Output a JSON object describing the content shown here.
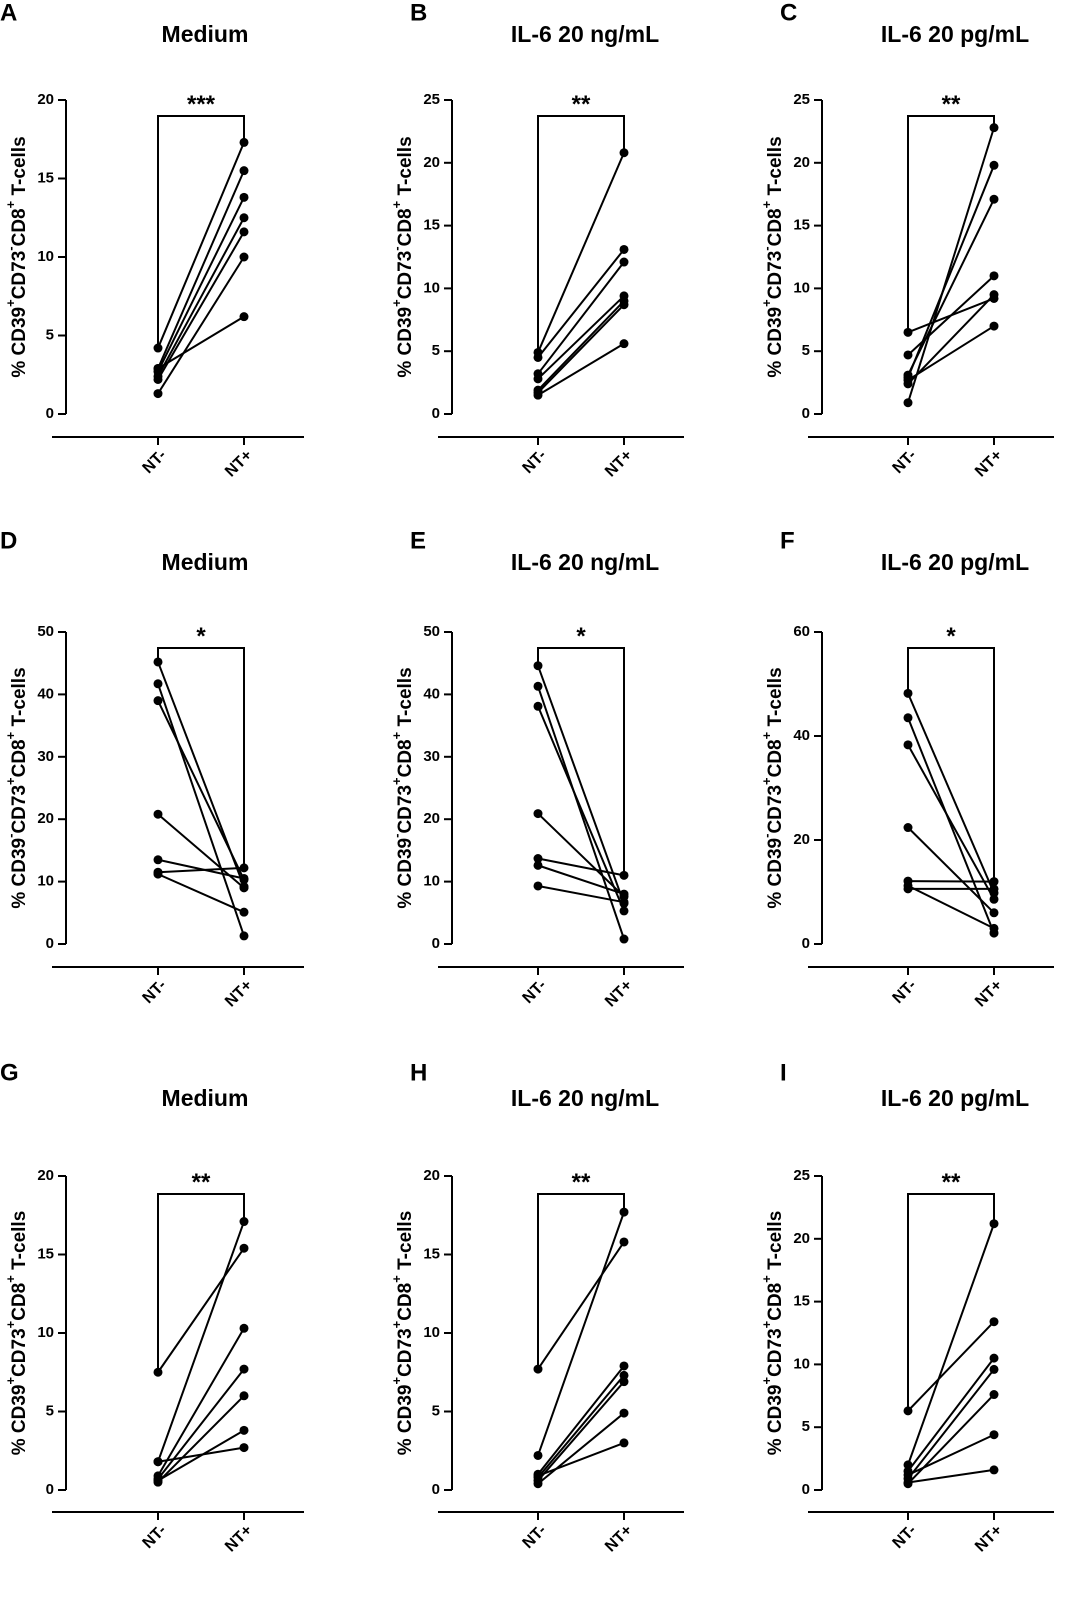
{
  "chart_data": [
    {
      "type": "line",
      "panel_label": "A",
      "title": "Medium",
      "ylabel": [
        [
          "% CD39",
          "n"
        ],
        [
          "+",
          "s"
        ],
        [
          "CD73",
          "n"
        ],
        [
          "-",
          "s"
        ],
        [
          "CD8",
          "n"
        ],
        [
          "+",
          "s"
        ],
        [
          " T-cells",
          "n"
        ]
      ],
      "categories": [
        "NT-",
        "NT+"
      ],
      "ylim": [
        0,
        20
      ],
      "yticks": [
        0,
        5,
        10,
        15,
        20
      ],
      "significance": "***",
      "series": [
        [
          4.2,
          17.3
        ],
        [
          2.9,
          15.5
        ],
        [
          2.7,
          13.8
        ],
        [
          2.4,
          12.5
        ],
        [
          2.2,
          11.6
        ],
        [
          1.3,
          10.0
        ],
        [
          2.9,
          6.2
        ]
      ]
    },
    {
      "type": "line",
      "panel_label": "B",
      "title": "IL-6 20 ng/mL",
      "ylabel": [
        [
          "% CD39",
          "n"
        ],
        [
          "+",
          "s"
        ],
        [
          "CD73",
          "n"
        ],
        [
          "-",
          "s"
        ],
        [
          "CD8",
          "n"
        ],
        [
          "+",
          "s"
        ],
        [
          " T-cells",
          "n"
        ]
      ],
      "categories": [
        "NT-",
        "NT+"
      ],
      "ylim": [
        0,
        25
      ],
      "yticks": [
        0,
        5,
        10,
        15,
        20,
        25
      ],
      "significance": "**",
      "series": [
        [
          4.9,
          20.8
        ],
        [
          4.5,
          13.1
        ],
        [
          3.2,
          12.1
        ],
        [
          2.8,
          9.4
        ],
        [
          1.9,
          9.0
        ],
        [
          1.7,
          8.7
        ],
        [
          1.5,
          5.6
        ]
      ]
    },
    {
      "type": "line",
      "panel_label": "C",
      "title": "IL-6 20 pg/mL",
      "ylabel": [
        [
          "% CD39",
          "n"
        ],
        [
          "+",
          "s"
        ],
        [
          "CD73",
          "n"
        ],
        [
          "-",
          "s"
        ],
        [
          "CD8",
          "n"
        ],
        [
          "+",
          "s"
        ],
        [
          " T-cells",
          "n"
        ]
      ],
      "categories": [
        "NT-",
        "NT+"
      ],
      "ylim": [
        0,
        25
      ],
      "yticks": [
        0,
        5,
        10,
        15,
        20,
        25
      ],
      "significance": "**",
      "series": [
        [
          0.9,
          22.8
        ],
        [
          2.9,
          19.8
        ],
        [
          3.1,
          17.1
        ],
        [
          4.7,
          11.0
        ],
        [
          2.4,
          9.5
        ],
        [
          6.5,
          9.2
        ],
        [
          2.7,
          7.0
        ]
      ]
    },
    {
      "type": "line",
      "panel_label": "D",
      "title": "Medium",
      "ylabel": [
        [
          "% CD39",
          "n"
        ],
        [
          "-",
          "s"
        ],
        [
          "CD73",
          "n"
        ],
        [
          "+",
          "s"
        ],
        [
          "CD8",
          "n"
        ],
        [
          "+",
          "s"
        ],
        [
          " T-cells",
          "n"
        ]
      ],
      "categories": [
        "NT-",
        "NT+"
      ],
      "ylim": [
        0,
        50
      ],
      "yticks": [
        0,
        10,
        20,
        30,
        40,
        50
      ],
      "significance": "*",
      "series": [
        [
          45.2,
          9.2
        ],
        [
          41.7,
          1.3
        ],
        [
          39.0,
          10.3
        ],
        [
          20.8,
          9.0
        ],
        [
          13.5,
          10.5
        ],
        [
          11.5,
          12.2
        ],
        [
          11.2,
          5.1
        ]
      ]
    },
    {
      "type": "line",
      "panel_label": "E",
      "title": "IL-6 20 ng/mL",
      "ylabel": [
        [
          "% CD39",
          "n"
        ],
        [
          "-",
          "s"
        ],
        [
          "CD73",
          "n"
        ],
        [
          "+",
          "s"
        ],
        [
          "CD8",
          "n"
        ],
        [
          "+",
          "s"
        ],
        [
          " T-cells",
          "n"
        ]
      ],
      "categories": [
        "NT-",
        "NT+"
      ],
      "ylim": [
        0,
        50
      ],
      "yticks": [
        0,
        10,
        20,
        30,
        40,
        50
      ],
      "significance": "*",
      "series": [
        [
          44.6,
          6.5
        ],
        [
          41.3,
          0.8
        ],
        [
          38.1,
          5.3
        ],
        [
          20.9,
          7.6
        ],
        [
          13.7,
          11.0
        ],
        [
          12.6,
          8.0
        ],
        [
          9.3,
          6.7
        ]
      ]
    },
    {
      "type": "line",
      "panel_label": "F",
      "title": "IL-6 20 pg/mL",
      "ylabel": [
        [
          "% CD39",
          "n"
        ],
        [
          "-",
          "s"
        ],
        [
          "CD73",
          "n"
        ],
        [
          "+",
          "s"
        ],
        [
          "CD8",
          "n"
        ],
        [
          "+",
          "s"
        ],
        [
          " T-cells",
          "n"
        ]
      ],
      "categories": [
        "NT-",
        "NT+"
      ],
      "ylim": [
        0,
        60
      ],
      "yticks": [
        0,
        20,
        40,
        60
      ],
      "significance": "*",
      "series": [
        [
          48.2,
          9.8
        ],
        [
          43.5,
          2.1
        ],
        [
          38.3,
          8.6
        ],
        [
          22.4,
          6.0
        ],
        [
          12.1,
          12.0
        ],
        [
          11.2,
          3.0
        ],
        [
          10.6,
          10.6
        ]
      ]
    },
    {
      "type": "line",
      "panel_label": "G",
      "title": "Medium",
      "ylabel": [
        [
          "% CD39",
          "n"
        ],
        [
          "+",
          "s"
        ],
        [
          "CD73",
          "n"
        ],
        [
          "+",
          "s"
        ],
        [
          "CD8",
          "n"
        ],
        [
          "+",
          "s"
        ],
        [
          " T-cells",
          "n"
        ]
      ],
      "categories": [
        "NT-",
        "NT+"
      ],
      "ylim": [
        0,
        20
      ],
      "yticks": [
        0,
        5,
        10,
        15,
        20
      ],
      "significance": "**",
      "series": [
        [
          7.5,
          15.4
        ],
        [
          1.8,
          17.1
        ],
        [
          0.9,
          10.3
        ],
        [
          0.7,
          7.7
        ],
        [
          0.5,
          6.0
        ],
        [
          0.6,
          3.8
        ],
        [
          1.8,
          2.7
        ]
      ]
    },
    {
      "type": "line",
      "panel_label": "H",
      "title": "IL-6 20 ng/mL",
      "ylabel": [
        [
          "% CD39",
          "n"
        ],
        [
          "+",
          "s"
        ],
        [
          "CD73",
          "n"
        ],
        [
          "+",
          "s"
        ],
        [
          "CD8",
          "n"
        ],
        [
          "+",
          "s"
        ],
        [
          " T-cells",
          "n"
        ]
      ],
      "categories": [
        "NT-",
        "NT+"
      ],
      "ylim": [
        0,
        20
      ],
      "yticks": [
        0,
        5,
        10,
        15,
        20
      ],
      "significance": "**",
      "series": [
        [
          7.7,
          15.8
        ],
        [
          2.2,
          17.7
        ],
        [
          1.0,
          7.9
        ],
        [
          0.8,
          7.3
        ],
        [
          0.6,
          6.9
        ],
        [
          0.4,
          4.9
        ],
        [
          0.9,
          3.0
        ]
      ]
    },
    {
      "type": "line",
      "panel_label": "I",
      "title": "IL-6 20 pg/mL",
      "ylabel": [
        [
          "% CD39",
          "n"
        ],
        [
          "+",
          "s"
        ],
        [
          "CD73",
          "n"
        ],
        [
          "+",
          "s"
        ],
        [
          "CD8",
          "n"
        ],
        [
          "+",
          "s"
        ],
        [
          " T-cells",
          "n"
        ]
      ],
      "categories": [
        "NT-",
        "NT+"
      ],
      "ylim": [
        0,
        25
      ],
      "yticks": [
        0,
        5,
        10,
        15,
        20,
        25
      ],
      "significance": "**",
      "series": [
        [
          6.3,
          13.4
        ],
        [
          2.0,
          21.2
        ],
        [
          1.5,
          10.5
        ],
        [
          0.9,
          9.6
        ],
        [
          0.5,
          7.6
        ],
        [
          1.2,
          4.4
        ],
        [
          0.6,
          1.6
        ]
      ]
    }
  ]
}
